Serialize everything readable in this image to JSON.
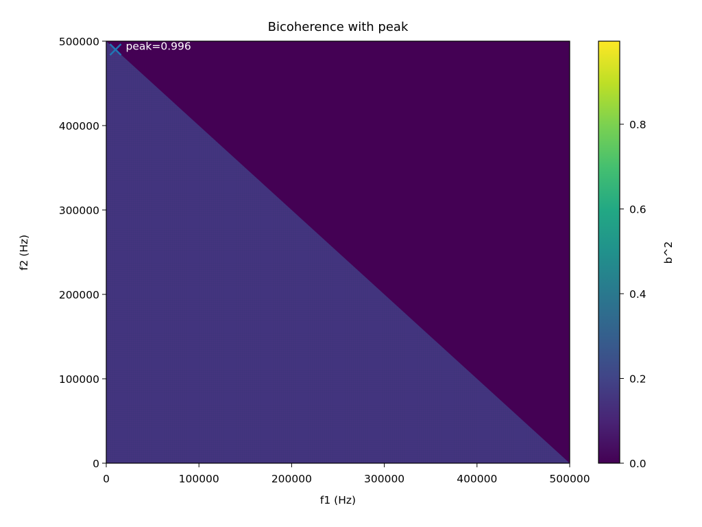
{
  "chart_data": {
    "type": "heatmap",
    "title": "Bicoherence with peak",
    "xlabel": "f1 (Hz)",
    "ylabel": "f2 (Hz)",
    "xlim": [
      0,
      500000
    ],
    "ylim": [
      0,
      500000
    ],
    "x_ticks": [
      0,
      100000,
      200000,
      300000,
      400000,
      500000
    ],
    "y_ticks": [
      0,
      100000,
      200000,
      300000,
      400000,
      500000
    ],
    "x_tick_labels": [
      "0",
      "100000",
      "200000",
      "300000",
      "400000",
      "500000"
    ],
    "y_tick_labels": [
      "0",
      "100000",
      "200000",
      "300000",
      "400000",
      "500000"
    ],
    "colormap": "viridis",
    "regions": [
      {
        "name": "f1 + f2 <= 500000",
        "value": 0.15
      },
      {
        "name": "f1 + f2 > 500000",
        "value": 0.0
      }
    ],
    "peak": {
      "f1": 10000,
      "f2": 490000,
      "value": 0.996,
      "label": "peak=0.996",
      "marker_color": "#1f77b4"
    },
    "colorbar": {
      "label": "b^2",
      "range": [
        0.0,
        0.996
      ],
      "ticks": [
        0.0,
        0.2,
        0.4,
        0.6,
        0.8
      ],
      "tick_labels": [
        "0.0",
        "0.2",
        "0.4",
        "0.6",
        "0.8"
      ]
    },
    "grid": false
  }
}
